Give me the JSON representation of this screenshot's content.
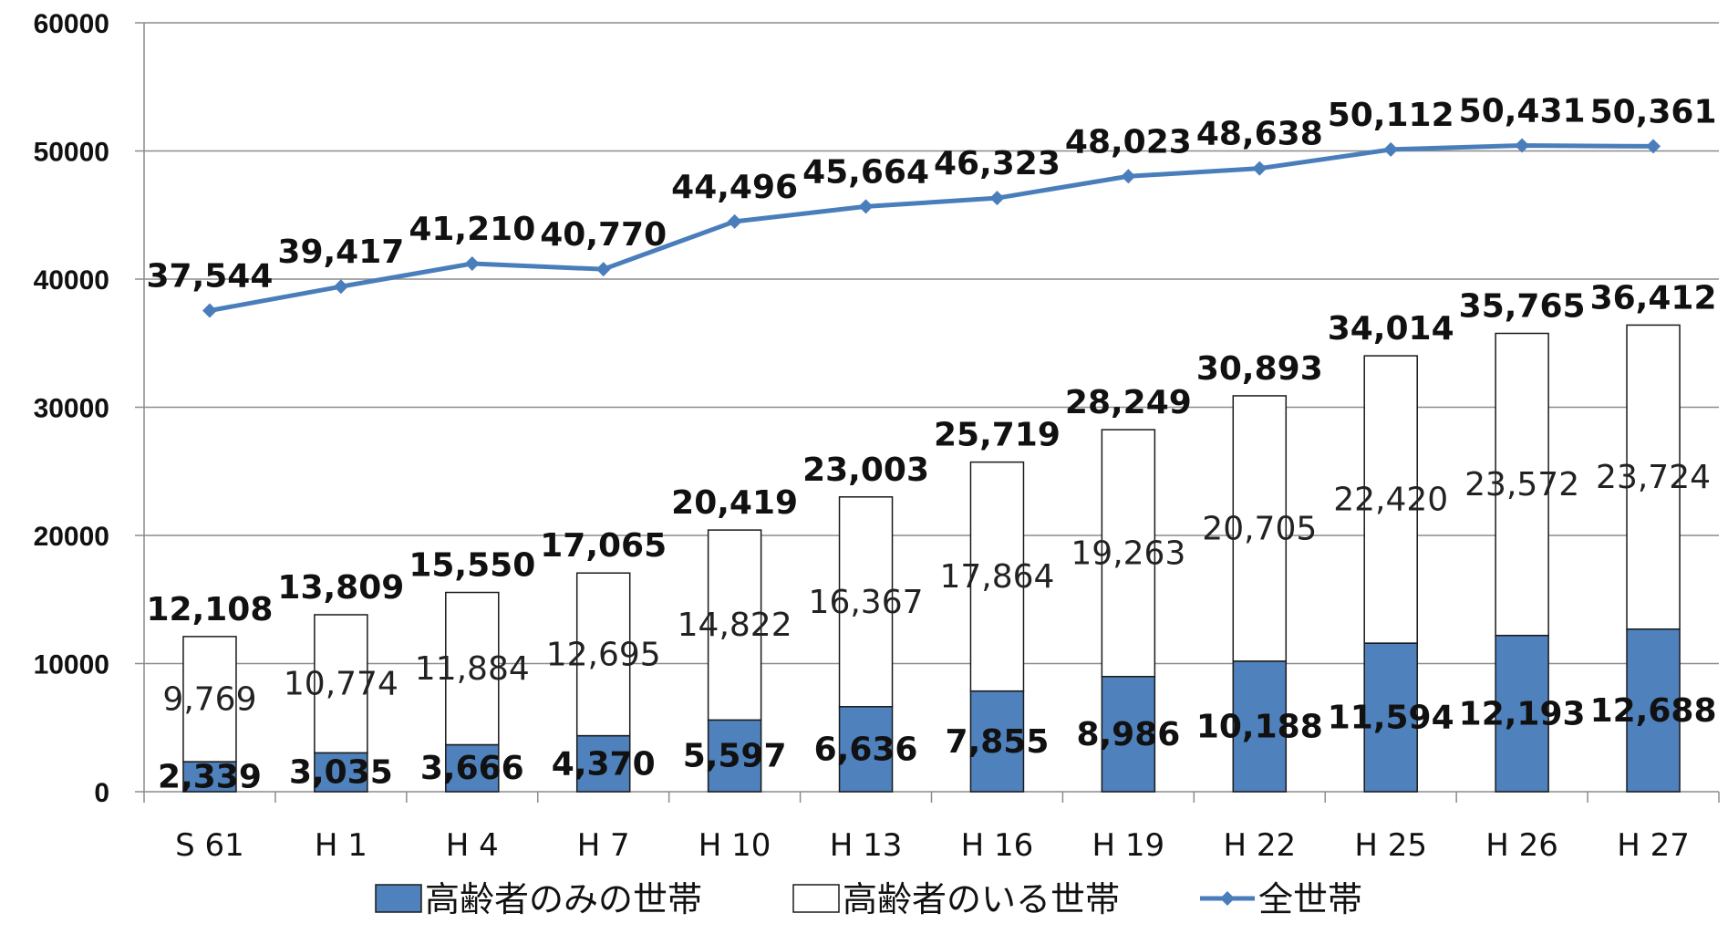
{
  "chart_data": {
    "type": "bar",
    "stacked": true,
    "categories": [
      "S 61",
      "H 1",
      "H 4",
      "H 7",
      "H 10",
      "H 13",
      "H 16",
      "H 19",
      "H 22",
      "H 25",
      "H 26",
      "H 27"
    ],
    "series": [
      {
        "name": "高齢者のみの世帯",
        "type": "bar",
        "color": "#4F81BD",
        "values": [
          2339,
          3035,
          3666,
          4370,
          5597,
          6636,
          7855,
          8986,
          10188,
          11594,
          12193,
          12688
        ],
        "labels": [
          "2,339",
          "3,035",
          "3,666",
          "4,370",
          "5,597",
          "6,636",
          "7,855",
          "8,986",
          "10,188",
          "11,594",
          "12,193",
          "12,688"
        ]
      },
      {
        "name": "高齢者のいる世帯",
        "type": "bar",
        "color": "#FFFFFF",
        "values": [
          9769,
          10774,
          11884,
          12695,
          14822,
          16367,
          17864,
          19263,
          20705,
          22420,
          23572,
          23724
        ],
        "labels": [
          "9,769",
          "10,774",
          "11,884",
          "12,695",
          "14,822",
          "16,367",
          "17,864",
          "19,263",
          "20,705",
          "22,420",
          "23,572",
          "23,724"
        ]
      },
      {
        "name": "全世帯",
        "type": "line",
        "color": "#4A7EBB",
        "marker": "diamond",
        "values": [
          37544,
          39417,
          41210,
          40770,
          44496,
          45664,
          46323,
          48023,
          48638,
          50112,
          50431,
          50361
        ],
        "labels": [
          "37,544",
          "39,417",
          "41,210",
          "40,770",
          "44,496",
          "45,664",
          "46,323",
          "48,023",
          "48,638",
          "50,112",
          "50,431",
          "50,361"
        ]
      }
    ],
    "stack_totals": [
      12108,
      13809,
      15550,
      17065,
      20419,
      23003,
      25719,
      28249,
      30893,
      34014,
      35765,
      36412
    ],
    "stack_total_labels": [
      "12,108",
      "13,809",
      "15,550",
      "17,065",
      "20,419",
      "23,003",
      "25,719",
      "28,249",
      "30,893",
      "34,014",
      "35,765",
      "36,412"
    ],
    "yticks": [
      "0",
      "10000",
      "20000",
      "30000",
      "40000",
      "50000",
      "60000"
    ],
    "ylim": [
      0,
      60000
    ],
    "grid": true,
    "legend_position": "bottom",
    "title": "",
    "xlabel": "",
    "ylabel": ""
  }
}
